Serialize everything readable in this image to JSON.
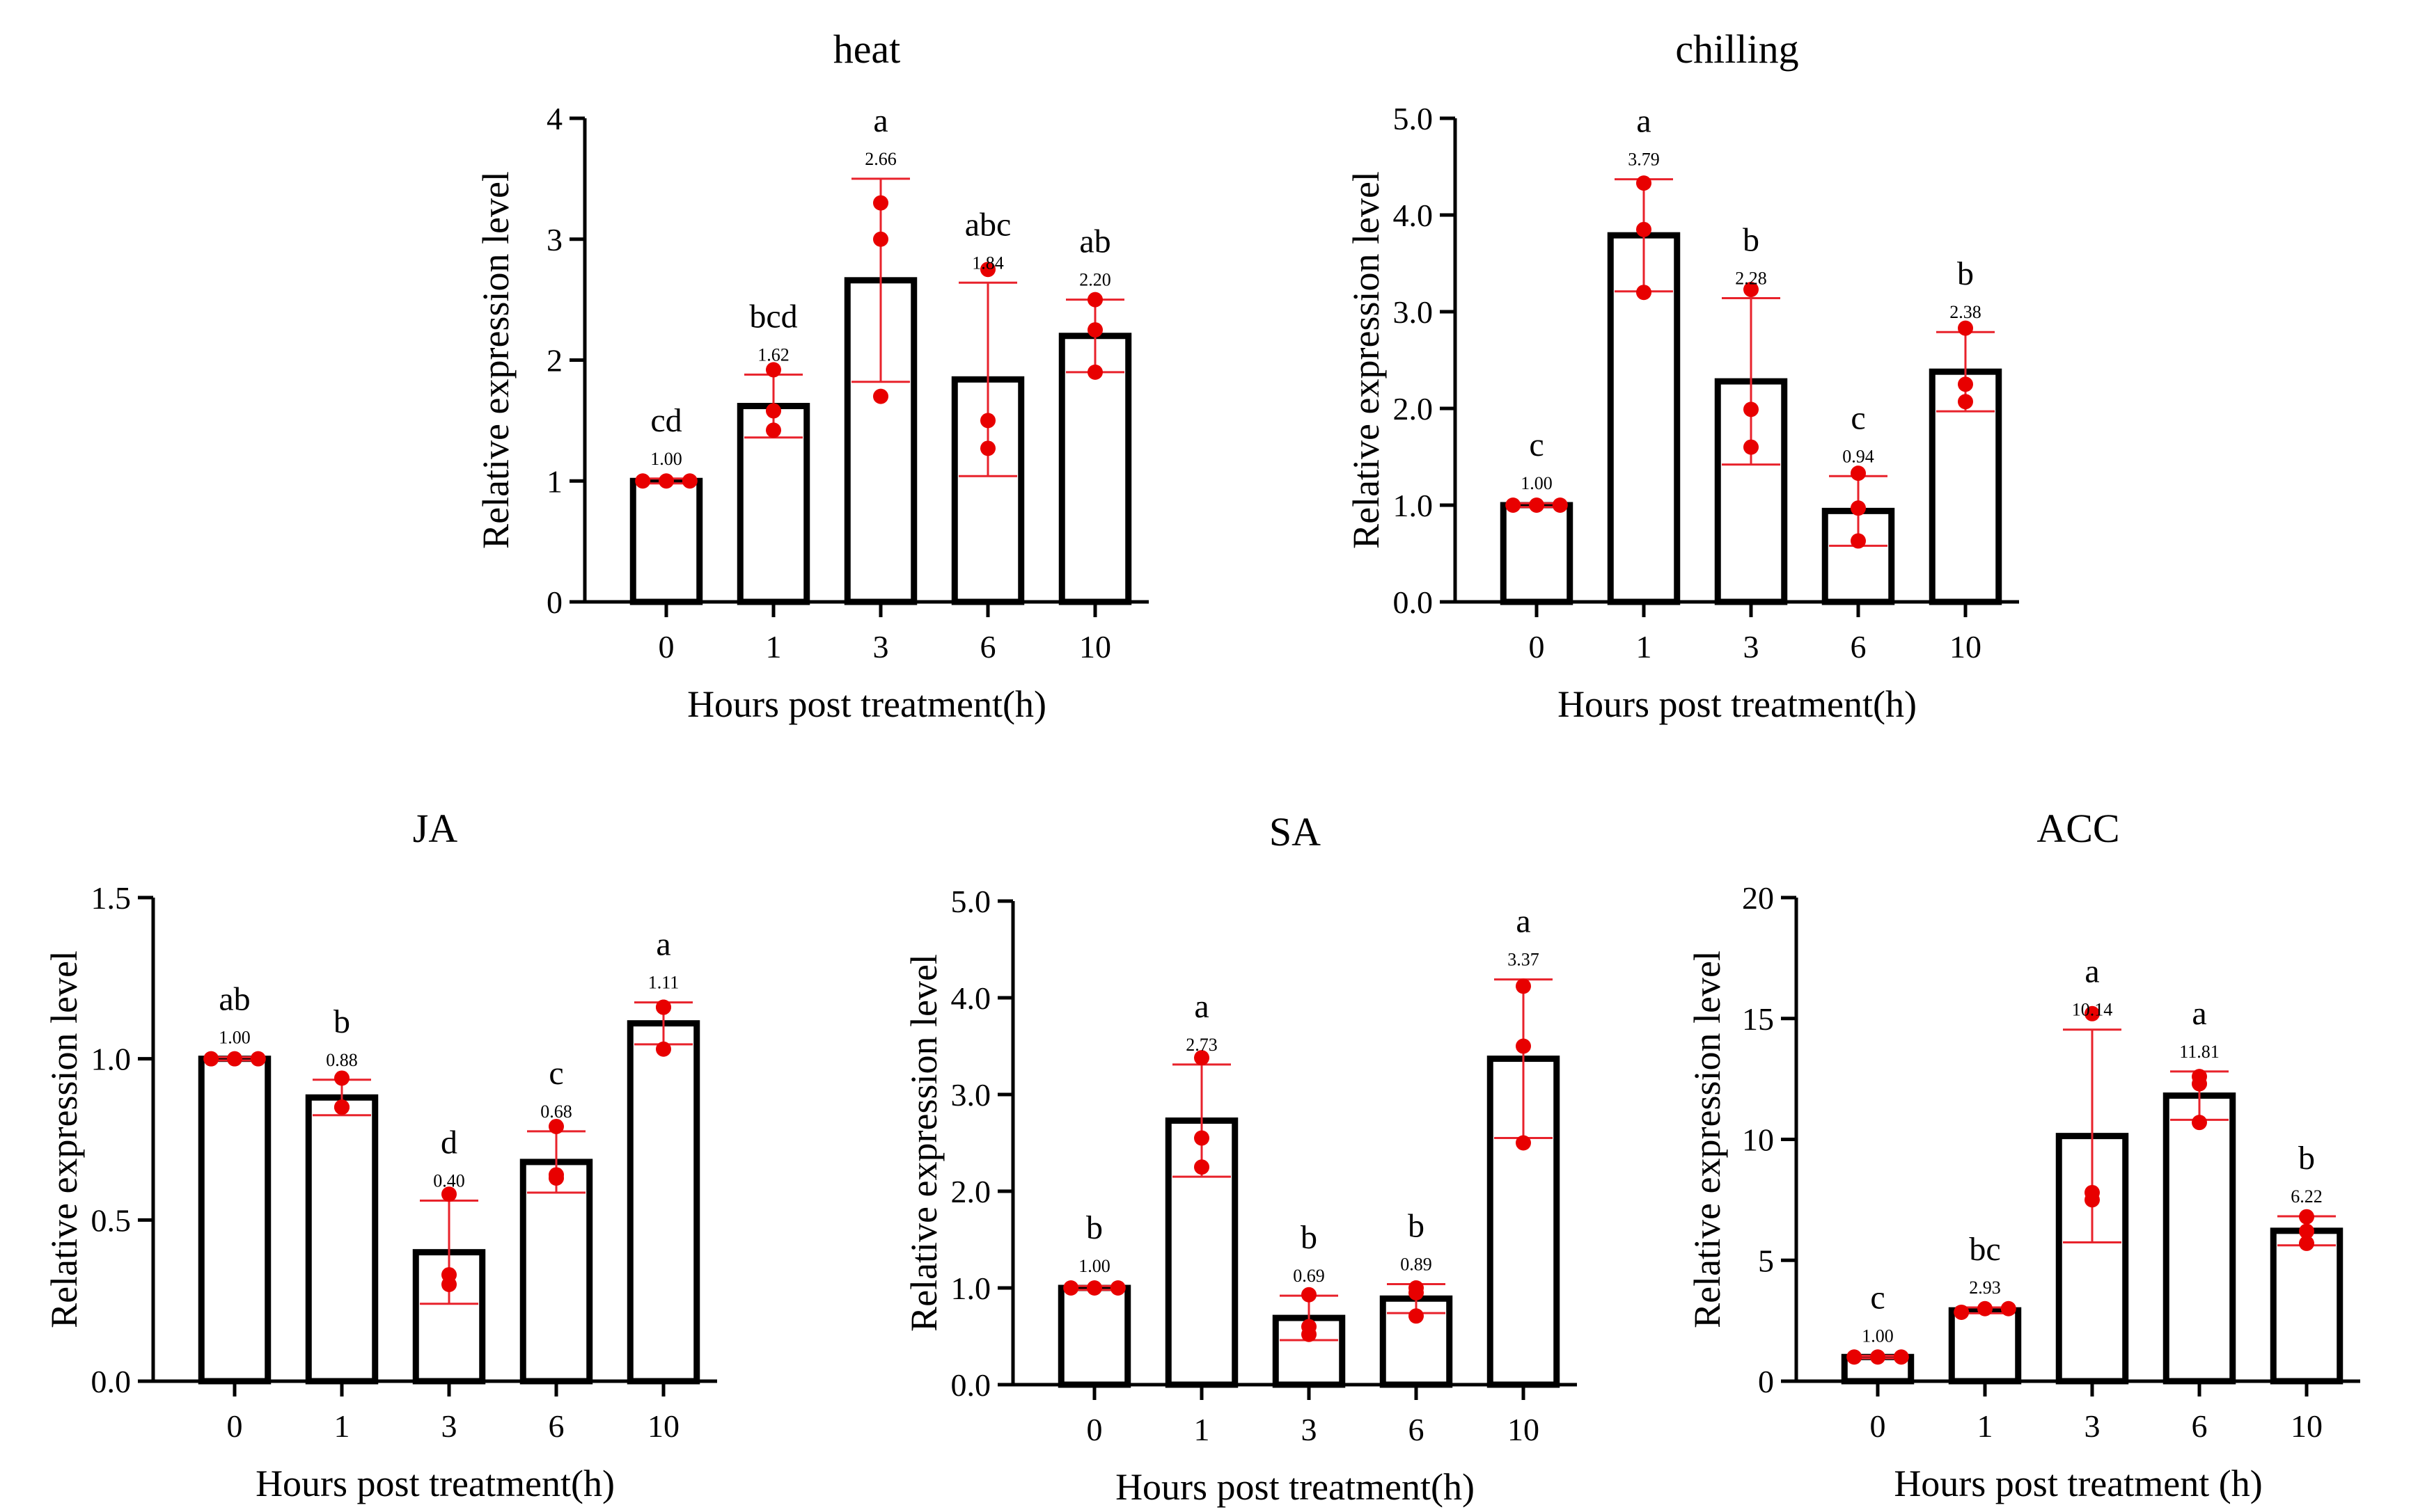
{
  "chart_data": [
    {
      "type": "bar",
      "title": "heat",
      "xlabel": "Hours post treatment(h)",
      "ylabel": "Relative expression level",
      "categories": [
        "0",
        "1",
        "3",
        "6",
        "10"
      ],
      "ylim": [
        0,
        4
      ],
      "yticks": [
        "0",
        "1",
        "2",
        "3",
        "4"
      ],
      "values": [
        1.0,
        1.62,
        2.66,
        1.84,
        2.2
      ],
      "value_labels": [
        "1.00",
        "1.62",
        "2.66",
        "1.84",
        "2.20"
      ],
      "sd": [
        0.02,
        0.26,
        0.84,
        0.8,
        0.3
      ],
      "significance": [
        "cd",
        "bcd",
        "a",
        "abc",
        "ab"
      ],
      "points": [
        [
          1.0,
          1.0,
          1.0
        ],
        [
          1.92,
          1.58,
          1.42
        ],
        [
          3.3,
          3.0,
          1.7
        ],
        [
          2.75,
          1.5,
          1.27
        ],
        [
          2.5,
          2.25,
          1.9
        ]
      ]
    },
    {
      "type": "bar",
      "title": "chilling",
      "xlabel": "Hours post treatment(h)",
      "ylabel": "Relative expression level",
      "categories": [
        "0",
        "1",
        "3",
        "6",
        "10"
      ],
      "ylim": [
        0,
        5
      ],
      "yticks": [
        "0.0",
        "1.0",
        "2.0",
        "3.0",
        "4.0",
        "5.0"
      ],
      "values": [
        1.0,
        3.79,
        2.28,
        0.94,
        2.38
      ],
      "value_labels": [
        "1.00",
        "3.79",
        "2.28",
        "0.94",
        "2.38"
      ],
      "sd": [
        0.02,
        0.58,
        0.86,
        0.36,
        0.41
      ],
      "significance": [
        "c",
        "a",
        "b",
        "c",
        "b"
      ],
      "points": [
        [
          1.0,
          1.0,
          1.0
        ],
        [
          4.33,
          3.85,
          3.2
        ],
        [
          3.23,
          1.99,
          1.6
        ],
        [
          1.33,
          0.97,
          0.63
        ],
        [
          2.83,
          2.25,
          2.07
        ]
      ]
    },
    {
      "type": "bar",
      "title": "JA",
      "xlabel": "Hours post treatment(h)",
      "ylabel": "Relative expression level",
      "categories": [
        "0",
        "1",
        "3",
        "6",
        "10"
      ],
      "ylim": [
        0,
        1.5
      ],
      "yticks": [
        "0.0",
        "0.5",
        "1.0",
        "1.5"
      ],
      "values": [
        1.0,
        0.88,
        0.4,
        0.68,
        1.11
      ],
      "value_labels": [
        "1.00",
        "0.88",
        "0.40",
        "0.68",
        "1.11"
      ],
      "sd": [
        0.005,
        0.055,
        0.16,
        0.095,
        0.065
      ],
      "significance": [
        "ab",
        "b",
        "d",
        "c",
        "a"
      ],
      "points": [
        [
          1.0,
          1.0,
          1.0
        ],
        [
          0.94,
          0.85,
          0.85
        ],
        [
          0.58,
          0.33,
          0.3
        ],
        [
          0.79,
          0.64,
          0.63
        ],
        [
          1.16,
          1.16,
          1.03
        ]
      ]
    },
    {
      "type": "bar",
      "title": "SA",
      "xlabel": "Hours post treatment(h)",
      "ylabel": "Relative expression level",
      "categories": [
        "0",
        "1",
        "3",
        "6",
        "10"
      ],
      "ylim": [
        0,
        5
      ],
      "yticks": [
        "0.0",
        "1.0",
        "2.0",
        "3.0",
        "4.0",
        "5.0"
      ],
      "values": [
        1.0,
        2.73,
        0.69,
        0.89,
        3.37
      ],
      "value_labels": [
        "1.00",
        "2.73",
        "0.69",
        "0.89",
        "3.37"
      ],
      "sd": [
        0.02,
        0.58,
        0.23,
        0.15,
        0.82
      ],
      "significance": [
        "b",
        "a",
        "b",
        "b",
        "a"
      ],
      "points": [
        [
          1.0,
          1.0,
          1.0
        ],
        [
          3.38,
          2.55,
          2.25
        ],
        [
          0.93,
          0.6,
          0.52
        ],
        [
          1.0,
          0.95,
          0.71
        ],
        [
          4.12,
          3.5,
          2.5
        ]
      ]
    },
    {
      "type": "bar",
      "title": "ACC",
      "xlabel": "Hours post treatment (h)",
      "ylabel": "Relative expression level",
      "categories": [
        "0",
        "1",
        "3",
        "6",
        "10"
      ],
      "ylim": [
        0,
        20
      ],
      "yticks": [
        "0",
        "5",
        "10",
        "15",
        "20"
      ],
      "values": [
        1.0,
        2.93,
        10.14,
        11.81,
        6.22
      ],
      "value_labels": [
        "1.00",
        "2.93",
        "10.14",
        "11.81",
        "6.22"
      ],
      "sd": [
        0.05,
        0.12,
        4.4,
        1.0,
        0.6
      ],
      "significance": [
        "c",
        "bc",
        "a",
        "a",
        "b"
      ],
      "points": [
        [
          1.0,
          1.0,
          1.0
        ],
        [
          2.85,
          3.0,
          3.0
        ],
        [
          15.2,
          7.8,
          7.5
        ],
        [
          12.6,
          12.3,
          10.7
        ],
        [
          6.8,
          6.2,
          5.7
        ]
      ]
    }
  ]
}
